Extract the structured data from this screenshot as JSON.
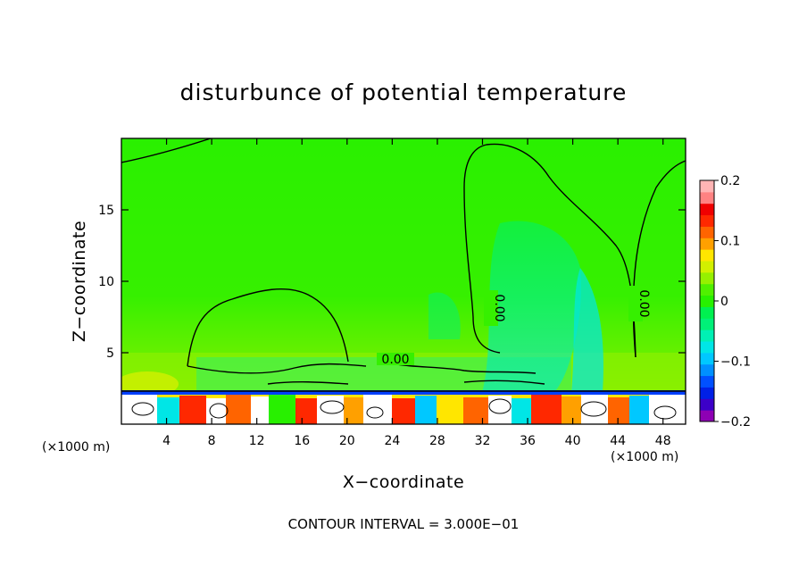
{
  "chart_data": {
    "type": "heatmap",
    "title": "disturbunce of potential temperature",
    "xlabel": "X−coordinate",
    "ylabel": "Z−coordinate",
    "x_unit_left": "(×1000 m)",
    "x_unit_right": "(×1000 m)",
    "xlim": [
      0,
      50
    ],
    "ylim": [
      0,
      20
    ],
    "x_ticks": [
      4,
      8,
      12,
      16,
      20,
      24,
      28,
      32,
      36,
      40,
      44,
      48
    ],
    "y_ticks": [
      5,
      10,
      15
    ],
    "colorbar": {
      "range": [
        -0.2,
        0.2
      ],
      "ticks": [
        {
          "value": 0.2,
          "label": "0.2"
        },
        {
          "value": 0.1,
          "label": "0.1"
        },
        {
          "value": 0.0,
          "label": "0"
        },
        {
          "value": -0.1,
          "label": "−0.1"
        },
        {
          "value": -0.2,
          "label": "−0.2"
        }
      ],
      "colors": [
        "#8e00b4",
        "#3c00c8",
        "#0020e6",
        "#0050ff",
        "#0090ff",
        "#00c8ff",
        "#00e6e6",
        "#00f0b4",
        "#00f078",
        "#00f050",
        "#28f000",
        "#50f000",
        "#96f000",
        "#d2f000",
        "#ffe600",
        "#ffa000",
        "#ff6400",
        "#ff2800",
        "#f00000",
        "#ff8282",
        "#ffb4b4"
      ]
    },
    "contour_labels": [
      {
        "text": "0.00",
        "x": 24.5,
        "z": 4.5,
        "rotation": 0
      },
      {
        "text": "0.00",
        "x": 33.0,
        "z": 8.3,
        "rotation": 90
      },
      {
        "text": "0.00",
        "x": 45.5,
        "z": 8.5,
        "rotation": 90
      }
    ],
    "contour_interval_text": "CONTOUR INTERVAL = 3.000E−01"
  }
}
